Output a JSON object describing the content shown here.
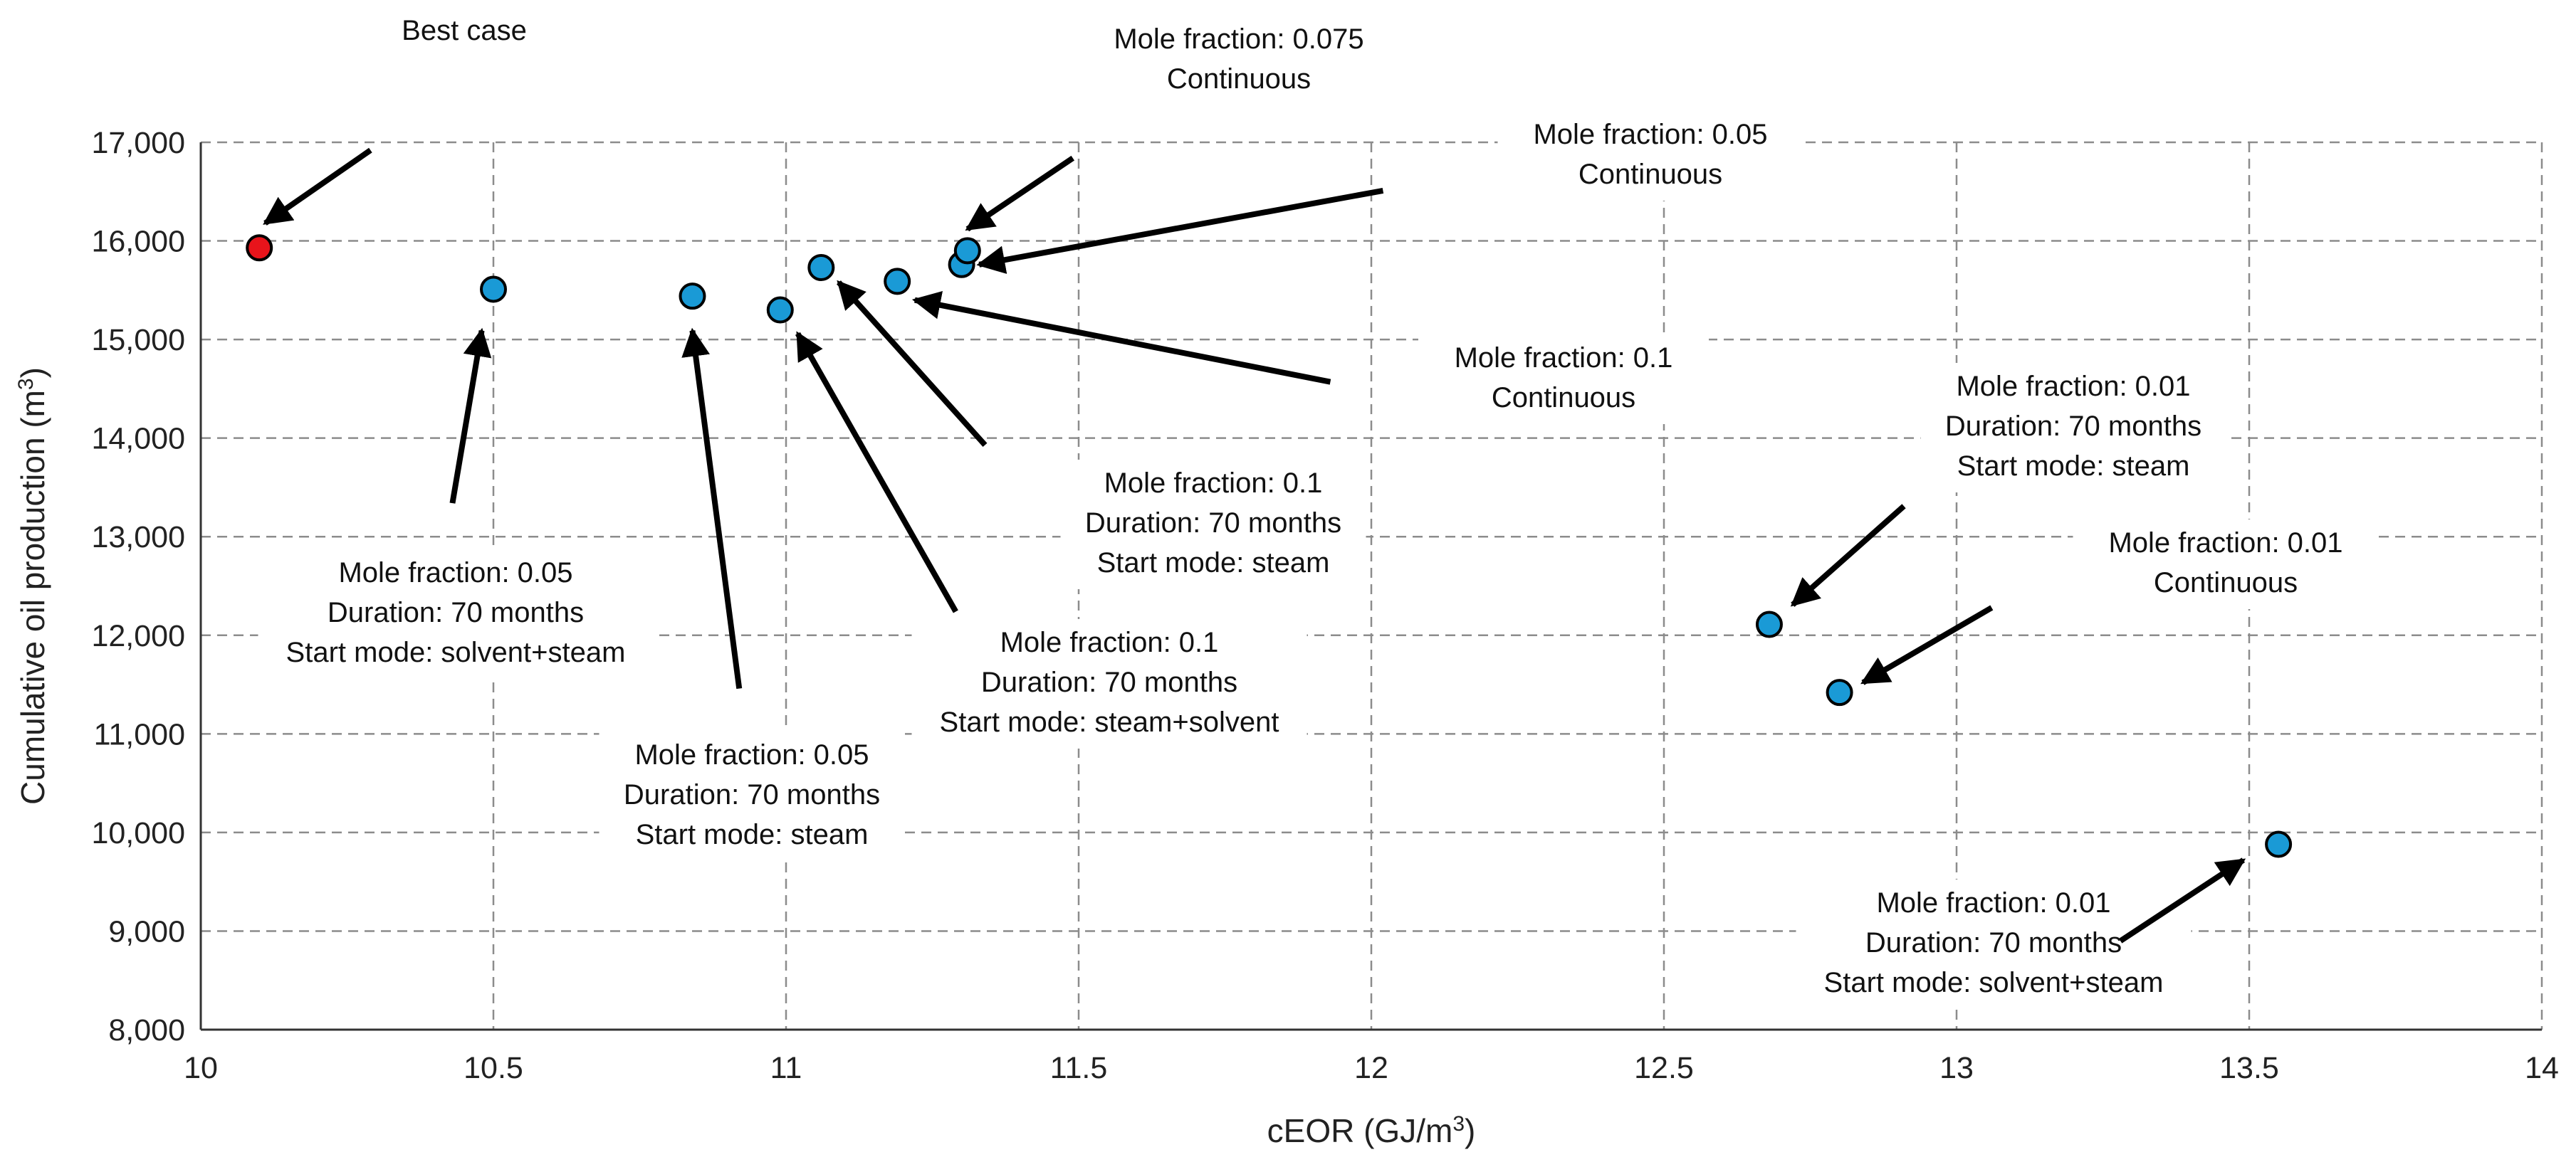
{
  "chart_data": {
    "type": "scatter",
    "title": "",
    "xlabel": "cEOR (GJ/m",
    "xlabel_sup": "3",
    "xlabel_end": ")",
    "ylabel": "Cumulative oil production (m",
    "ylabel_sup": "3",
    "ylabel_end": ")",
    "xlim": [
      10,
      14
    ],
    "ylim": [
      8000,
      17000
    ],
    "x_ticks": [
      10,
      10.5,
      11,
      11.5,
      12,
      12.5,
      13,
      13.5,
      14
    ],
    "x_tick_labels": [
      "10",
      "10.5",
      "11",
      "11.5",
      "12",
      "12.5",
      "13",
      "13.5",
      "14"
    ],
    "y_ticks": [
      8000,
      9000,
      10000,
      11000,
      12000,
      13000,
      14000,
      15000,
      16000,
      17000
    ],
    "y_tick_labels": [
      "8,000",
      "9,000",
      "10,000",
      "11,000",
      "12,000",
      "13,000",
      "14,000",
      "15,000",
      "16,000",
      "17,000"
    ],
    "grid": true,
    "colors": {
      "highlight": "#e8141b",
      "default": "#1a9ad6"
    },
    "points": [
      {
        "x": 10.1,
        "y": 15930,
        "highlight": true
      },
      {
        "x": 10.5,
        "y": 15510,
        "highlight": false
      },
      {
        "x": 10.84,
        "y": 15440,
        "highlight": false
      },
      {
        "x": 10.99,
        "y": 15300,
        "highlight": false
      },
      {
        "x": 11.06,
        "y": 15730,
        "highlight": false
      },
      {
        "x": 11.19,
        "y": 15590,
        "highlight": false
      },
      {
        "x": 11.3,
        "y": 15760,
        "highlight": false
      },
      {
        "x": 11.31,
        "y": 15900,
        "highlight": false
      },
      {
        "x": 12.68,
        "y": 12110,
        "highlight": false
      },
      {
        "x": 12.8,
        "y": 11420,
        "highlight": false
      },
      {
        "x": 13.55,
        "y": 9880,
        "highlight": false
      }
    ],
    "annotations": [
      {
        "lines": [
          "Best case"
        ],
        "from": [
          10.29,
          16920
        ],
        "to": [
          10.11,
          16180
        ]
      },
      {
        "lines": [
          "Mole fraction: 0.075",
          "Continuous"
        ],
        "from": [
          11.49,
          16840
        ],
        "to": [
          11.31,
          16120
        ]
      },
      {
        "lines": [
          "Mole fraction: 0.05",
          "Continuous"
        ],
        "from": [
          12.02,
          16510
        ],
        "to": [
          11.33,
          15760
        ]
      },
      {
        "lines": [
          "Mole fraction: 0.1",
          "Continuous"
        ],
        "from": [
          11.93,
          14570
        ],
        "to": [
          11.22,
          15400
        ]
      },
      {
        "lines": [
          "Mole fraction: 0.05",
          "Duration: 70 months",
          "Start mode: solvent+steam"
        ],
        "from": [
          10.43,
          13340
        ],
        "to": [
          10.48,
          15090
        ]
      },
      {
        "lines": [
          "Mole fraction: 0.05",
          "Duration: 70 months",
          "Start mode: steam"
        ],
        "from": [
          10.92,
          11460
        ],
        "to": [
          10.84,
          15090
        ]
      },
      {
        "lines": [
          "Mole fraction: 0.1",
          "Duration: 70 months",
          "Start mode: steam+solvent"
        ],
        "from": [
          11.29,
          12240
        ],
        "to": [
          11.02,
          15060
        ]
      },
      {
        "lines": [
          "Mole fraction: 0.1",
          "Duration: 70 months",
          "Start mode: steam"
        ],
        "from": [
          11.34,
          13930
        ],
        "to": [
          11.09,
          15580
        ]
      },
      {
        "lines": [
          "Mole fraction: 0.01",
          "Duration: 70 months",
          "Start mode: steam"
        ],
        "from": [
          12.91,
          13310
        ],
        "to": [
          12.72,
          12310
        ]
      },
      {
        "lines": [
          "Mole fraction: 0.01",
          "Continuous"
        ],
        "from": [
          13.06,
          12280
        ],
        "to": [
          12.84,
          11520
        ]
      },
      {
        "lines": [
          "Mole fraction: 0.01",
          "Duration: 70 months",
          "Start mode: solvent+steam"
        ],
        "from": [
          13.28,
          8900
        ],
        "to": [
          13.49,
          9720
        ]
      }
    ]
  }
}
